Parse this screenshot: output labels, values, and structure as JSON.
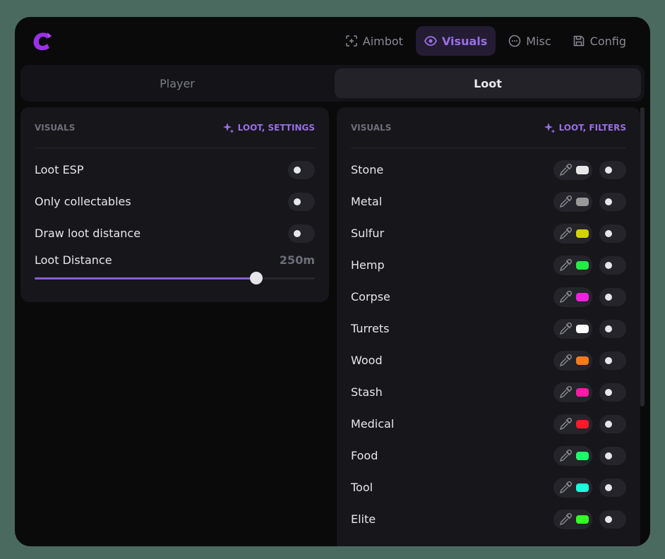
{
  "nav": [
    {
      "label": "Aimbot",
      "icon": "crosshair-icon"
    },
    {
      "label": "Visuals",
      "icon": "eye-icon",
      "active": true
    },
    {
      "label": "Misc",
      "icon": "dots-circle-icon"
    },
    {
      "label": "Config",
      "icon": "save-icon"
    }
  ],
  "subtabs": [
    {
      "label": "Player"
    },
    {
      "label": "Loot",
      "active": true
    }
  ],
  "accent": "#9a6ee6",
  "left": {
    "title": "VISUALS",
    "tag": "LOOT, SETTINGS",
    "toggles": [
      {
        "label": "Loot ESP",
        "on": false
      },
      {
        "label": "Only collectables",
        "on": false
      },
      {
        "label": "Draw loot distance",
        "on": false
      }
    ],
    "slider": {
      "label": "Loot Distance",
      "value": "250m",
      "fraction": 0.79
    }
  },
  "right": {
    "title": "VISUALS",
    "tag": "LOOT, FILTERS",
    "items": [
      {
        "label": "Stone",
        "color": "#e8e8e8"
      },
      {
        "label": "Metal",
        "color": "#9a9a9a"
      },
      {
        "label": "Sulfur",
        "color": "#d2d200"
      },
      {
        "label": "Hemp",
        "color": "#22ee44"
      },
      {
        "label": "Corpse",
        "color": "#ee22dd"
      },
      {
        "label": "Turrets",
        "color": "#ffffff"
      },
      {
        "label": "Wood",
        "color": "#ff7a1a"
      },
      {
        "label": "Stash",
        "color": "#ff1aa8"
      },
      {
        "label": "Medical",
        "color": "#ff1a2a"
      },
      {
        "label": "Food",
        "color": "#1aff6a"
      },
      {
        "label": "Tool",
        "color": "#1affdd"
      },
      {
        "label": "Elite",
        "color": "#33ff22"
      }
    ]
  }
}
